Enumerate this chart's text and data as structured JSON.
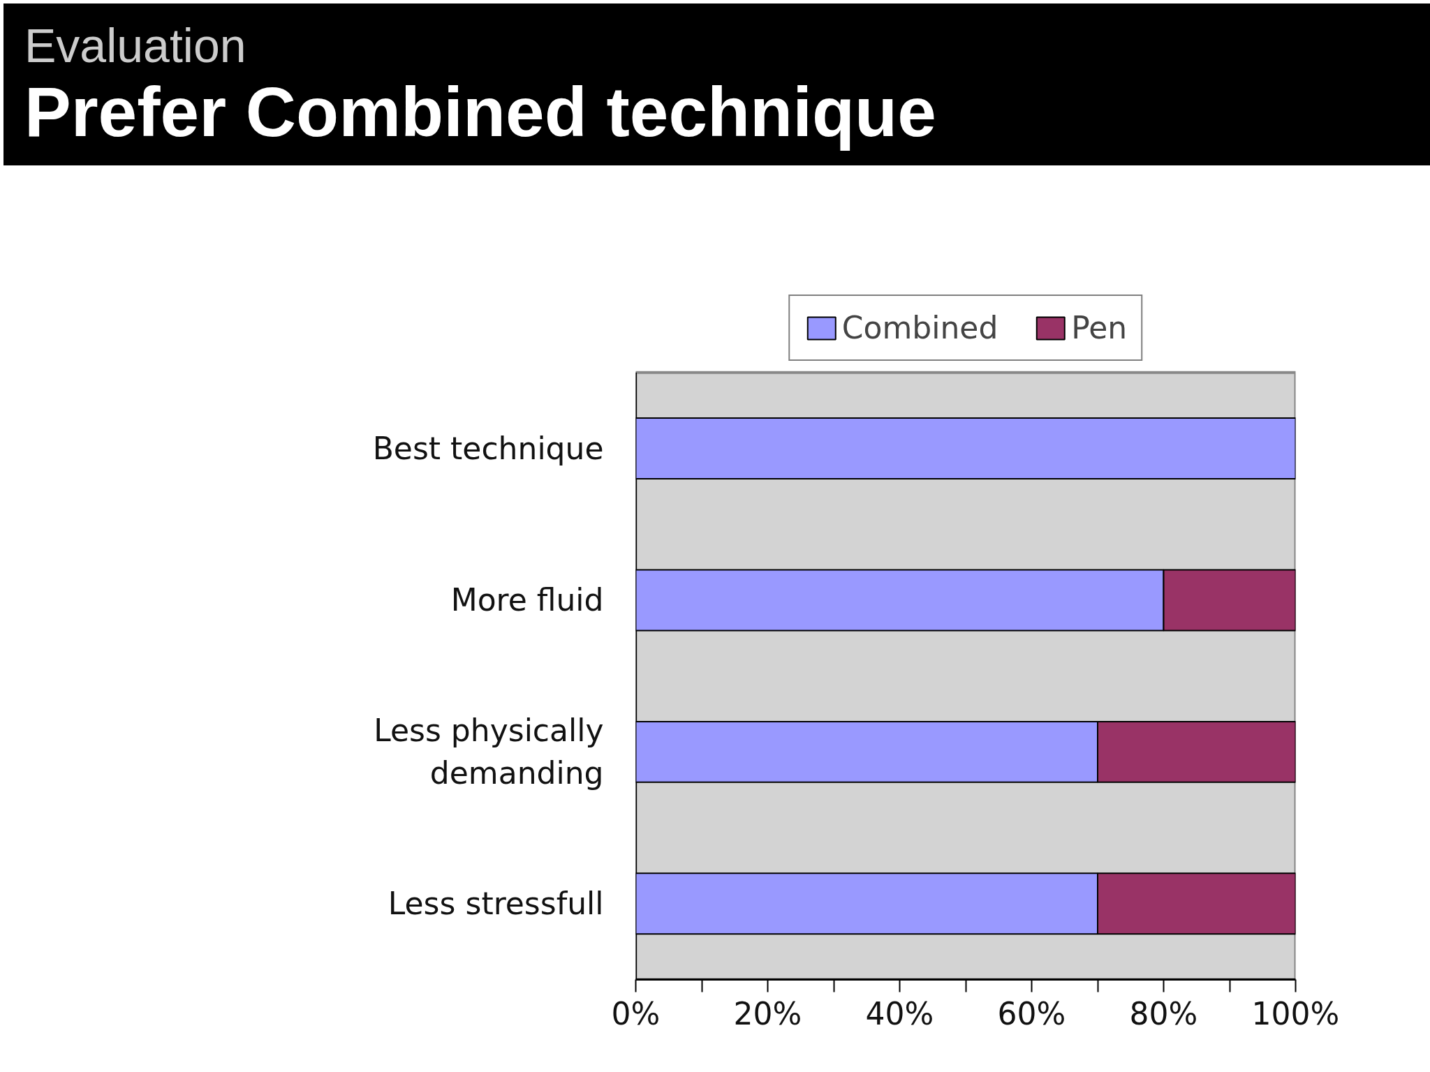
{
  "chart_data": {
    "type": "bar",
    "orientation": "horizontal",
    "stacked": true,
    "subtitle": "Evaluation",
    "title": "Prefer Combined technique",
    "categories": [
      "Best technique",
      "More fluid",
      "Less physically demanding",
      "Less stressfull"
    ],
    "series": [
      {
        "name": "Combined",
        "color": "#9999ff",
        "values": [
          100,
          80,
          70,
          70
        ]
      },
      {
        "name": "Pen",
        "color": "#993366",
        "values": [
          0,
          20,
          30,
          30
        ]
      }
    ],
    "xlim": [
      0,
      100
    ],
    "xticks": [
      {
        "value": 0,
        "label": "0%"
      },
      {
        "value": 20,
        "label": "20%"
      },
      {
        "value": 40,
        "label": "40%"
      },
      {
        "value": 60,
        "label": "60%"
      },
      {
        "value": 80,
        "label": "80%"
      },
      {
        "value": 100,
        "label": "100%"
      }
    ],
    "grid": false,
    "legend": "top"
  }
}
